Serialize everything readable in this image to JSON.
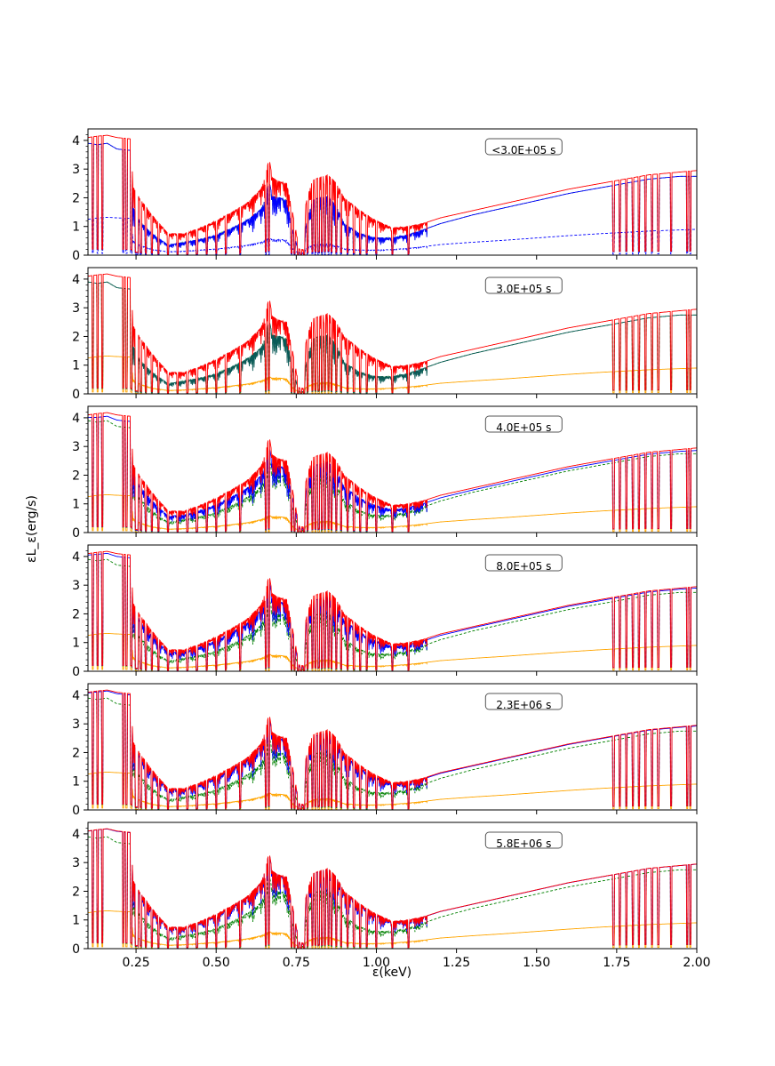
{
  "chart_data": {
    "type": "line",
    "xlabel": "ε(keV)",
    "ylabel": "εL_ε(erg/s)",
    "xlim": [
      0.1,
      2.0
    ],
    "ylim": [
      0,
      4.4
    ],
    "x_ticks": [
      0.25,
      0.5,
      0.75,
      1.0,
      1.25,
      1.5,
      1.75,
      2.0
    ],
    "x_tick_labels": [
      "0.25",
      "0.50",
      "0.75",
      "1.00",
      "1.25",
      "1.50",
      "1.75",
      "2.00"
    ],
    "y_ticks": [
      0,
      1,
      2,
      3,
      4
    ],
    "y_tick_labels": [
      "0",
      "1",
      "2",
      "3",
      "4"
    ],
    "grid": false,
    "colors": {
      "red": "#ff0000",
      "blue": "#0000ff",
      "green": "#008000",
      "orange": "#ffa500",
      "teal": "#0a5a58"
    },
    "absorption_edges_keV": [
      0.115,
      0.13,
      0.145,
      0.21,
      0.22,
      0.235,
      0.25,
      0.255,
      0.265,
      0.28,
      0.3,
      0.32,
      0.35,
      0.38,
      0.41,
      0.44,
      0.47,
      0.5,
      0.53,
      0.575,
      0.655,
      0.665,
      0.735,
      0.745,
      0.755,
      0.765,
      0.775,
      0.785,
      0.8,
      0.81,
      0.82,
      0.83,
      0.84,
      0.85,
      0.86,
      0.875,
      0.89,
      0.91,
      0.93,
      0.95,
      0.97,
      1.0,
      1.05,
      1.1,
      1.74,
      1.76,
      1.78,
      1.8,
      1.82,
      1.84,
      1.86,
      1.88,
      1.92,
      1.97,
      1.98
    ],
    "envelope": {
      "x": [
        0.1,
        0.13,
        0.16,
        0.19,
        0.235,
        0.24,
        0.26,
        0.3,
        0.35,
        0.4,
        0.45,
        0.5,
        0.55,
        0.6,
        0.64,
        0.655,
        0.665,
        0.675,
        0.7,
        0.72,
        0.74,
        0.76,
        0.775,
        0.78,
        0.8,
        0.82,
        0.85,
        0.875,
        0.9,
        0.95,
        1.0,
        1.05,
        1.1,
        1.15,
        1.2,
        1.3,
        1.4,
        1.5,
        1.6,
        1.7,
        1.75,
        1.8,
        1.85,
        1.9,
        1.95,
        2.0
      ],
      "red": [
        4.1,
        4.15,
        4.18,
        4.1,
        4.05,
        2.4,
        2.0,
        1.4,
        0.75,
        0.75,
        0.95,
        1.2,
        1.5,
        1.85,
        2.3,
        2.8,
        3.4,
        2.7,
        2.55,
        2.5,
        1.4,
        0.2,
        0.2,
        1.8,
        2.6,
        2.7,
        2.8,
        2.5,
        2.0,
        1.55,
        1.2,
        0.95,
        1.0,
        1.12,
        1.3,
        1.55,
        1.8,
        2.05,
        2.3,
        2.5,
        2.6,
        2.7,
        2.8,
        2.85,
        2.9,
        2.95
      ],
      "green": [
        3.9,
        3.85,
        3.9,
        3.7,
        3.65,
        1.7,
        1.2,
        0.75,
        0.35,
        0.45,
        0.55,
        0.7,
        0.95,
        1.25,
        1.6,
        2.0,
        2.6,
        2.05,
        2.0,
        1.9,
        0.8,
        0.08,
        0.08,
        1.0,
        1.9,
        2.0,
        2.05,
        1.7,
        1.1,
        0.75,
        0.6,
        0.6,
        0.72,
        0.9,
        1.1,
        1.4,
        1.65,
        1.9,
        2.15,
        2.35,
        2.45,
        2.55,
        2.65,
        2.7,
        2.75,
        2.75
      ],
      "baseline": [
        1.25,
        1.3,
        1.32,
        1.3,
        1.28,
        0.5,
        0.35,
        0.2,
        0.12,
        0.14,
        0.18,
        0.22,
        0.28,
        0.35,
        0.45,
        0.52,
        0.6,
        0.55,
        0.55,
        0.52,
        0.2,
        0.05,
        0.05,
        0.22,
        0.35,
        0.38,
        0.4,
        0.33,
        0.22,
        0.18,
        0.18,
        0.2,
        0.24,
        0.3,
        0.37,
        0.45,
        0.52,
        0.6,
        0.68,
        0.75,
        0.78,
        0.81,
        0.84,
        0.86,
        0.88,
        0.9
      ]
    },
    "panels": [
      {
        "label": "<3.0E+05 s",
        "second": "blue",
        "third": "green",
        "mix": 0.0,
        "baseline_color": "blue",
        "baseline_dashed": true
      },
      {
        "label": "3.0E+05 s",
        "second": "teal",
        "third": "green",
        "mix": 0.0,
        "baseline_color": "orange",
        "baseline_dashed": false
      },
      {
        "label": "4.0E+05 s",
        "second": "blue",
        "third": "green",
        "mix": 0.55,
        "baseline_color": "orange",
        "baseline_dashed": false
      },
      {
        "label": "8.0E+05 s",
        "second": "blue",
        "third": "green",
        "mix": 0.75,
        "baseline_color": "orange",
        "baseline_dashed": false
      },
      {
        "label": "2.3E+06 s",
        "second": "blue",
        "third": "green",
        "mix": 0.88,
        "baseline_color": "orange",
        "baseline_dashed": false
      },
      {
        "label": "5.8E+06 s",
        "second": "blue",
        "third": "green",
        "mix": 0.97,
        "baseline_color": "orange",
        "baseline_dashed": false
      }
    ]
  }
}
